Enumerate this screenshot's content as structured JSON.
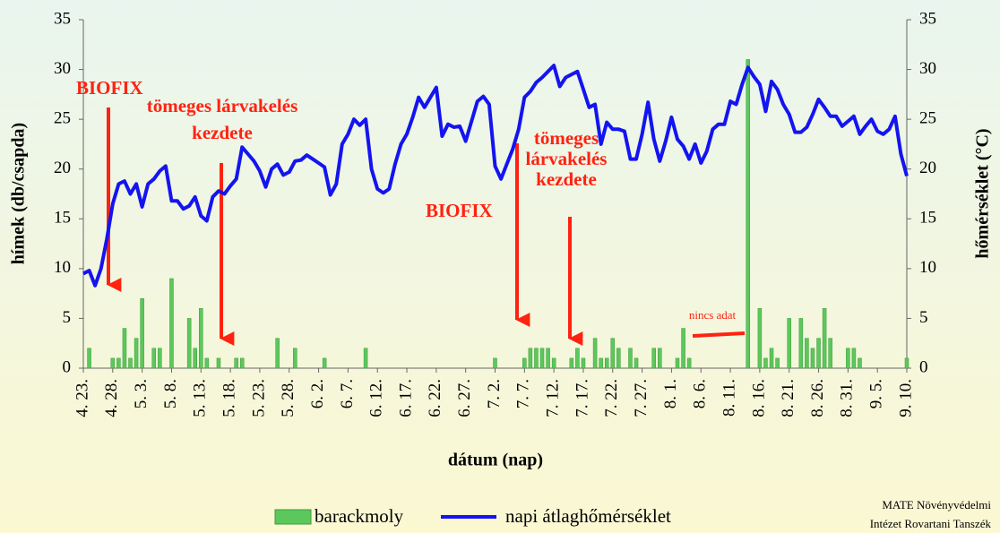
{
  "chart_data": {
    "type": "bar_line",
    "x_label": "dátum (nap)",
    "y_label": "hímek (db/csapda)",
    "y2_label": "hőmérséklet (°C)",
    "categories": [
      "4. 23.",
      null,
      null,
      null,
      null,
      "4. 28.",
      null,
      null,
      null,
      null,
      "5. 3.",
      null,
      null,
      null,
      null,
      "5. 8.",
      null,
      null,
      null,
      null,
      "5. 13.",
      null,
      null,
      null,
      null,
      "5. 18.",
      null,
      null,
      null,
      null,
      "5. 23.",
      null,
      null,
      null,
      null,
      "5. 28.",
      null,
      null,
      null,
      null,
      "6. 2.",
      null,
      null,
      null,
      null,
      "6. 7.",
      null,
      null,
      null,
      null,
      "6. 12.",
      null,
      null,
      null,
      null,
      "6. 17.",
      null,
      null,
      null,
      null,
      "6. 22.",
      null,
      null,
      null,
      null,
      "6. 27.",
      null,
      null,
      null,
      null,
      "7. 2.",
      null,
      null,
      null,
      null,
      "7. 7.",
      null,
      null,
      null,
      null,
      "7. 12.",
      null,
      null,
      null,
      null,
      "7. 17.",
      null,
      null,
      null,
      null,
      "7. 22.",
      null,
      null,
      null,
      null,
      "7. 27.",
      null,
      null,
      null,
      null,
      "8. 1.",
      null,
      null,
      null,
      null,
      "8. 6.",
      null,
      null,
      null,
      null,
      "8. 11.",
      null,
      null,
      null,
      null,
      "8. 16.",
      null,
      null,
      null,
      null,
      "8. 21.",
      null,
      null,
      null,
      null,
      "8. 26.",
      null,
      null,
      null,
      null,
      "8. 31.",
      null,
      null,
      null,
      null,
      "9. 5.",
      null,
      null,
      null,
      null,
      "9. 10."
    ],
    "series": [
      {
        "name": "barackmoly",
        "type": "bar",
        "color": "#5cc85c",
        "axis": "y",
        "values": [
          0,
          2,
          0,
          0,
          0,
          1,
          1,
          4,
          1,
          3,
          7,
          0,
          2,
          2,
          0,
          9,
          0,
          0,
          5,
          2,
          6,
          1,
          0,
          1,
          0,
          0,
          1,
          1,
          0,
          0,
          0,
          0,
          0,
          3,
          0,
          0,
          2,
          0,
          0,
          0,
          0,
          1,
          0,
          0,
          0,
          0,
          0,
          0,
          2,
          0,
          0,
          0,
          0,
          0,
          0,
          0,
          0,
          0,
          0,
          0,
          0,
          0,
          0,
          0,
          0,
          0,
          0,
          0,
          0,
          0,
          1,
          0,
          0,
          0,
          0,
          1,
          2,
          2,
          2,
          2,
          1,
          0,
          0,
          1,
          2,
          1,
          0,
          3,
          1,
          1,
          3,
          2,
          0,
          2,
          1,
          0,
          0,
          2,
          2,
          0,
          0,
          1,
          4,
          1,
          null,
          null,
          null,
          null,
          null,
          null,
          null,
          null,
          null,
          31,
          0,
          6,
          1,
          2,
          1,
          0,
          5,
          0,
          5,
          3,
          2,
          3,
          6,
          3,
          0,
          0,
          2,
          2,
          1,
          0,
          0,
          0,
          0,
          0,
          0,
          0,
          1
        ]
      },
      {
        "name": "napi átlaghőmérséklet",
        "type": "line",
        "color": "#1414f0",
        "axis": "y2",
        "values": [
          9.5,
          9.8,
          8.3,
          10,
          13,
          16.5,
          18.5,
          18.8,
          17.5,
          18.5,
          16.2,
          18.5,
          19,
          19.8,
          20.3,
          16.8,
          16.8,
          16,
          16.3,
          17.2,
          15.3,
          14.8,
          17.2,
          17.8,
          17.5,
          18.3,
          19,
          22.2,
          21.5,
          20.8,
          19.8,
          18.2,
          20,
          20.5,
          19.4,
          19.7,
          20.8,
          20.9,
          21.4,
          21,
          20.6,
          20.2,
          17.4,
          18.5,
          22.5,
          23.5,
          25,
          24.4,
          25,
          20,
          18,
          17.6,
          18,
          20.5,
          22.5,
          23.5,
          25.2,
          27.2,
          26.2,
          27.2,
          28.2,
          23.3,
          24.5,
          24.2,
          24.3,
          22.8,
          24.8,
          26.8,
          27.3,
          26.5,
          20.3,
          19,
          20.5,
          22,
          24,
          27.2,
          27.8,
          28.7,
          29.2,
          29.8,
          30.4,
          28.3,
          29.2,
          29.5,
          29.8,
          28,
          26.2,
          26.5,
          22.5,
          24.7,
          24,
          24,
          23.8,
          21,
          21,
          23.5,
          26.7,
          23,
          20.8,
          22.8,
          25.2,
          23,
          22.3,
          21,
          22.5,
          20.6,
          21.8,
          24,
          24.5,
          24.5,
          26.8,
          26.5,
          28.5,
          30.2,
          29.3,
          28.5,
          25.8,
          28.8,
          28,
          26.5,
          25.5,
          23.7,
          23.7,
          24.2,
          25.5,
          27,
          26.2,
          25.3,
          25.3,
          24.3,
          24.8,
          25.3,
          23.5,
          24.3,
          25,
          23.8,
          23.5,
          24,
          25.3,
          21.5,
          19.3
        ]
      }
    ],
    "ylim": [
      0,
      35
    ],
    "yticks": [
      0,
      5,
      10,
      15,
      20,
      25,
      30,
      35
    ],
    "y2lim": [
      0,
      35
    ],
    "y2ticks": [
      0,
      5,
      10,
      15,
      20,
      25,
      30,
      35
    ],
    "annotations": [
      [
        "BIOFIX"
      ],
      [
        "tömeges lárvakelés",
        "kezdete"
      ],
      [
        "BIOFIX"
      ],
      [
        "tömeges",
        "lárvakelés",
        "kezdete"
      ],
      [
        "nincs adat"
      ]
    ],
    "credit": [
      "MATE Növényvédelmi",
      "Intézet Rovartani Tanszék"
    ]
  }
}
